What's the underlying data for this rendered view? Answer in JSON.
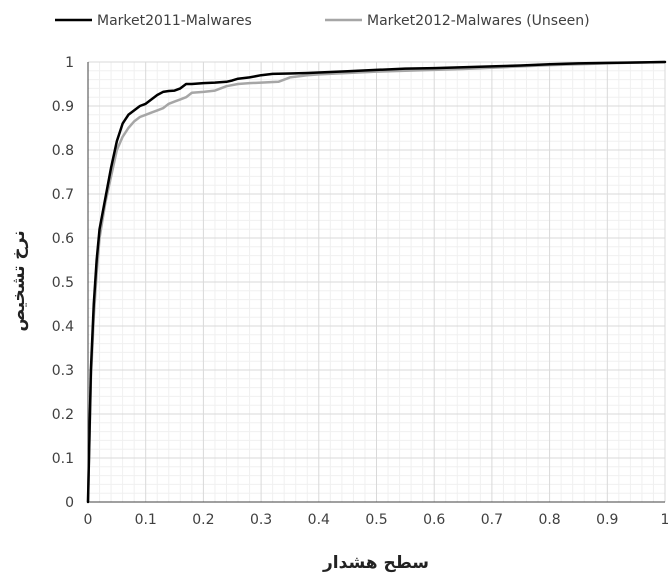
{
  "chart_data": {
    "type": "line",
    "title": "",
    "xlabel": "سطح هشدار",
    "ylabel": "نرخ تشخیص",
    "xlim": [
      0,
      1
    ],
    "ylim": [
      0,
      1
    ],
    "x_ticks": [
      "0",
      "0.1",
      "0.2",
      "0.3",
      "0.4",
      "0.5",
      "0.6",
      "0.7",
      "0.8",
      "0.9",
      "1"
    ],
    "y_ticks": [
      "0",
      "0.1",
      "0.2",
      "0.3",
      "0.4",
      "0.5",
      "0.6",
      "0.7",
      "0.8",
      "0.9",
      "1"
    ],
    "grid": true,
    "legend_position": "top",
    "series": [
      {
        "name": "Market2011-Malwares",
        "color": "#000000",
        "points": [
          [
            0,
            0
          ],
          [
            0.005,
            0.3
          ],
          [
            0.01,
            0.45
          ],
          [
            0.015,
            0.55
          ],
          [
            0.02,
            0.62
          ],
          [
            0.03,
            0.69
          ],
          [
            0.04,
            0.76
          ],
          [
            0.05,
            0.82
          ],
          [
            0.06,
            0.86
          ],
          [
            0.07,
            0.88
          ],
          [
            0.08,
            0.89
          ],
          [
            0.09,
            0.9
          ],
          [
            0.1,
            0.905
          ],
          [
            0.11,
            0.915
          ],
          [
            0.12,
            0.925
          ],
          [
            0.13,
            0.932
          ],
          [
            0.14,
            0.934
          ],
          [
            0.15,
            0.935
          ],
          [
            0.16,
            0.94
          ],
          [
            0.17,
            0.95
          ],
          [
            0.18,
            0.95
          ],
          [
            0.2,
            0.952
          ],
          [
            0.22,
            0.953
          ],
          [
            0.24,
            0.955
          ],
          [
            0.25,
            0.958
          ],
          [
            0.26,
            0.962
          ],
          [
            0.28,
            0.965
          ],
          [
            0.3,
            0.97
          ],
          [
            0.32,
            0.973
          ],
          [
            0.35,
            0.974
          ],
          [
            0.38,
            0.975
          ],
          [
            0.4,
            0.976
          ],
          [
            0.45,
            0.979
          ],
          [
            0.5,
            0.982
          ],
          [
            0.55,
            0.985
          ],
          [
            0.6,
            0.986
          ],
          [
            0.65,
            0.988
          ],
          [
            0.7,
            0.99
          ],
          [
            0.75,
            0.992
          ],
          [
            0.8,
            0.995
          ],
          [
            0.85,
            0.997
          ],
          [
            0.9,
            0.998
          ],
          [
            0.95,
            0.999
          ],
          [
            1,
            1
          ]
        ]
      },
      {
        "name": "Market2012-Malwares (Unseen)",
        "color": "#a6a6a6",
        "points": [
          [
            0,
            0
          ],
          [
            0.005,
            0.28
          ],
          [
            0.01,
            0.42
          ],
          [
            0.015,
            0.52
          ],
          [
            0.02,
            0.6
          ],
          [
            0.03,
            0.68
          ],
          [
            0.04,
            0.74
          ],
          [
            0.05,
            0.8
          ],
          [
            0.06,
            0.83
          ],
          [
            0.07,
            0.85
          ],
          [
            0.08,
            0.865
          ],
          [
            0.09,
            0.875
          ],
          [
            0.1,
            0.88
          ],
          [
            0.11,
            0.885
          ],
          [
            0.12,
            0.89
          ],
          [
            0.13,
            0.895
          ],
          [
            0.14,
            0.905
          ],
          [
            0.15,
            0.91
          ],
          [
            0.16,
            0.915
          ],
          [
            0.17,
            0.92
          ],
          [
            0.18,
            0.93
          ],
          [
            0.2,
            0.932
          ],
          [
            0.22,
            0.935
          ],
          [
            0.24,
            0.945
          ],
          [
            0.26,
            0.95
          ],
          [
            0.28,
            0.952
          ],
          [
            0.3,
            0.953
          ],
          [
            0.33,
            0.955
          ],
          [
            0.35,
            0.965
          ],
          [
            0.38,
            0.97
          ],
          [
            0.4,
            0.972
          ],
          [
            0.45,
            0.975
          ],
          [
            0.5,
            0.978
          ],
          [
            0.55,
            0.98
          ],
          [
            0.6,
            0.982
          ],
          [
            0.65,
            0.984
          ],
          [
            0.7,
            0.987
          ],
          [
            0.75,
            0.99
          ],
          [
            0.8,
            0.993
          ],
          [
            0.85,
            0.995
          ],
          [
            0.9,
            0.997
          ],
          [
            0.95,
            0.999
          ],
          [
            1,
            1
          ]
        ]
      }
    ]
  },
  "colors": {
    "grid_major": "#d9d9d9",
    "grid_minor": "#f0f0f0",
    "axis": "#404040",
    "tick_text": "#404040"
  }
}
